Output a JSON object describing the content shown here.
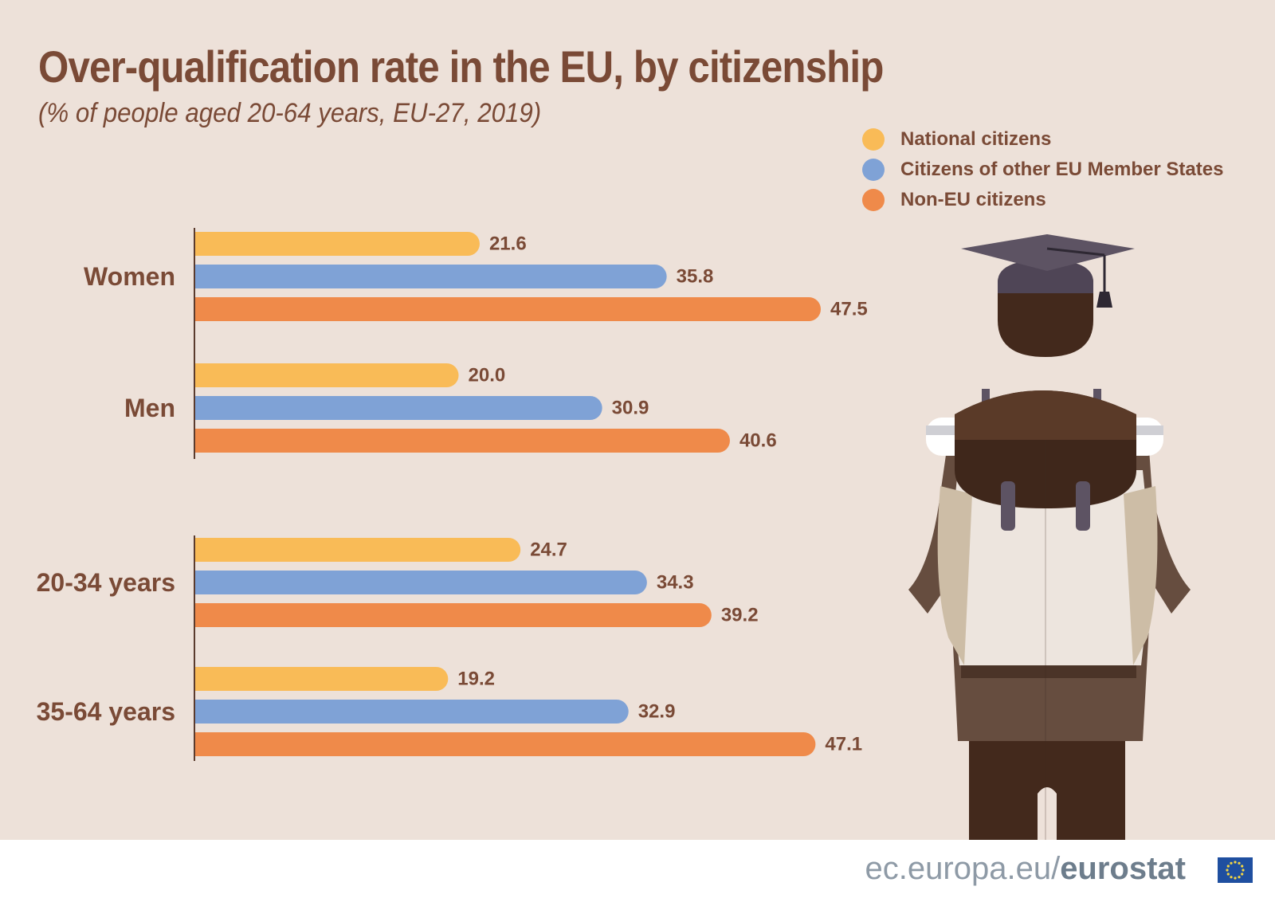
{
  "title": "Over-qualification rate in the EU, by citizenship",
  "subtitle": "(% of people aged 20-64 years, EU-27, 2019)",
  "legend": [
    {
      "label": "National citizens",
      "color": "#f9bb57"
    },
    {
      "label": "Citizens of other EU Member States",
      "color": "#7fa2d6"
    },
    {
      "label": "Non-EU citizens",
      "color": "#ef8a4a"
    }
  ],
  "chart_data": {
    "type": "bar",
    "orientation": "horizontal",
    "groups": [
      {
        "label": "Women",
        "values": [
          21.6,
          35.8,
          47.5
        ]
      },
      {
        "label": "Men",
        "values": [
          20.0,
          30.9,
          40.6
        ]
      },
      {
        "label": "20-34 years",
        "values": [
          24.7,
          34.3,
          39.2
        ]
      },
      {
        "label": "35-64 years",
        "values": [
          19.2,
          32.9,
          47.1
        ]
      }
    ],
    "series": [
      {
        "name": "National citizens",
        "color": "#f9bb57",
        "values": [
          21.6,
          20.0,
          24.7,
          19.2
        ]
      },
      {
        "name": "Citizens of other EU Member States",
        "color": "#7fa2d6",
        "values": [
          35.8,
          30.9,
          34.3,
          32.9
        ]
      },
      {
        "name": "Non-EU citizens",
        "color": "#ef8a4a",
        "values": [
          47.5,
          40.6,
          39.2,
          47.1
        ]
      }
    ],
    "xlim": [
      0,
      47.5
    ],
    "decimals": 1,
    "grid": false,
    "legend_position": "top-right"
  },
  "footer": {
    "domain": "ec.europa.eu/",
    "brand": "eurostat"
  },
  "illustration": "graduate-backpack-figure",
  "colors": {
    "text": "#7a4a36",
    "background": "#ede1d9",
    "axis": "#5a3b2e"
  }
}
